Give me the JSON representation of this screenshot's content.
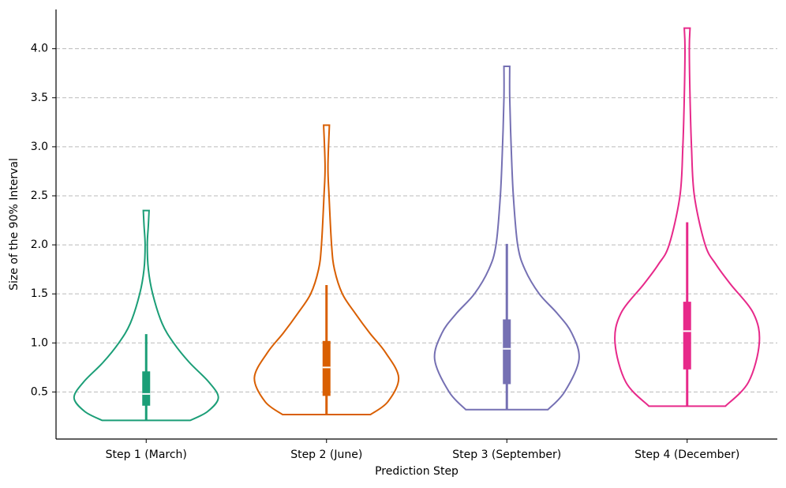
{
  "chart_data": {
    "type": "violin",
    "x_label": "Prediction Step",
    "y_label": "Size of the 90% Interval",
    "categories": [
      "Step 1 (March)",
      "Step 2 (June)",
      "Step 3 (September)",
      "Step 4 (December)"
    ],
    "ylim": [
      0.02,
      4.4
    ],
    "yticks": [
      0.5,
      {
        "value": 1.0,
        "label": "1.0"
      },
      1.5,
      {
        "value": 2.0,
        "label": "2.0"
      },
      2.5,
      {
        "value": 3.0,
        "label": "3.0"
      },
      3.5,
      {
        "value": 4.0,
        "label": "4.0"
      }
    ],
    "grid": true,
    "series": [
      {
        "color": "#1b9e77",
        "min": 0.21,
        "q1": 0.36,
        "median": 0.48,
        "q3": 0.71,
        "whisker_high": 1.09,
        "max": 2.35,
        "density": {
          "y": [
            0.21,
            0.3,
            0.44,
            0.6,
            0.8,
            1.0,
            1.2,
            1.5,
            1.75,
            2.0,
            2.2,
            2.35
          ],
          "width": [
            0.61,
            0.85,
            1.0,
            0.87,
            0.6,
            0.38,
            0.22,
            0.09,
            0.03,
            0.015,
            0.03,
            0.04
          ]
        }
      },
      {
        "color": "#d95f02",
        "min": 0.27,
        "q1": 0.46,
        "median": 0.75,
        "q3": 1.02,
        "whisker_high": 1.59,
        "max": 3.22,
        "density": {
          "y": [
            0.27,
            0.4,
            0.645,
            0.9,
            1.1,
            1.3,
            1.5,
            1.75,
            2.0,
            2.5,
            2.8,
            3.22
          ],
          "width": [
            0.61,
            0.85,
            1.0,
            0.82,
            0.6,
            0.4,
            0.22,
            0.11,
            0.07,
            0.035,
            0.02,
            0.04
          ]
        }
      },
      {
        "color": "#7570b3",
        "min": 0.32,
        "q1": 0.58,
        "median": 0.94,
        "q3": 1.24,
        "whisker_high": 2.01,
        "max": 3.82,
        "density": {
          "y": [
            0.32,
            0.5,
            0.83,
            1.1,
            1.3,
            1.5,
            1.75,
            2.0,
            2.5,
            3.0,
            3.5,
            3.82
          ],
          "width": [
            0.57,
            0.8,
            1.0,
            0.9,
            0.7,
            0.45,
            0.25,
            0.15,
            0.09,
            0.06,
            0.04,
            0.04
          ]
        }
      },
      {
        "color": "#e7298a",
        "min": 0.355,
        "q1": 0.73,
        "median": 1.12,
        "q3": 1.42,
        "whisker_high": 2.23,
        "max": 4.21,
        "density": {
          "y": [
            0.355,
            0.6,
            1.0,
            1.3,
            1.6,
            1.8,
            2.0,
            2.5,
            3.0,
            3.5,
            4.0,
            4.21
          ],
          "width": [
            0.53,
            0.85,
            1.0,
            0.92,
            0.6,
            0.4,
            0.25,
            0.1,
            0.06,
            0.04,
            0.03,
            0.04
          ]
        }
      }
    ]
  }
}
